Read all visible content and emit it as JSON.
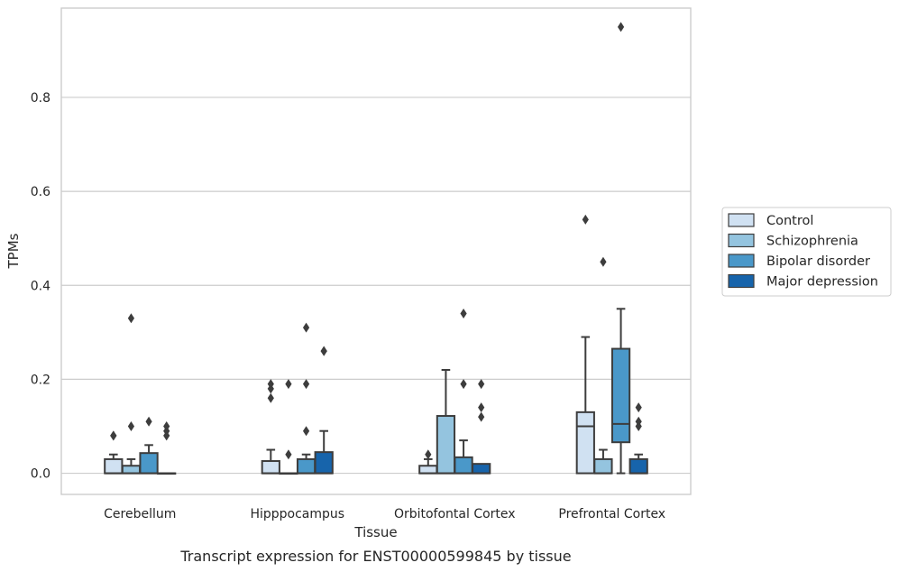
{
  "chart_data": {
    "type": "box",
    "title": "",
    "caption": "Transcript expression for ENST00000599845 by tissue",
    "xlabel": "Tissue",
    "ylabel": "TPMs",
    "ylim": [
      -0.045,
      0.99
    ],
    "yticks": [
      0.0,
      0.2,
      0.4,
      0.6,
      0.8
    ],
    "ytick_labels": [
      "0.0",
      "0.2",
      "0.4",
      "0.6",
      "0.8"
    ],
    "grid": "horizontal",
    "legend_position": "right",
    "categories": [
      "Cerebellum",
      "Hipppocampus",
      "Orbitofontal Cortex",
      "Prefrontal Cortex"
    ],
    "series": [
      {
        "name": "Control",
        "color": "#d0e1f2",
        "boxes": [
          {
            "q1": 0.0,
            "median": 0.0,
            "q3": 0.03,
            "whislo": 0.0,
            "whishi": 0.04,
            "fliers": [
              0.08,
              0.08
            ]
          },
          {
            "q1": 0.0,
            "median": 0.0,
            "q3": 0.026,
            "whislo": 0.0,
            "whishi": 0.05,
            "fliers": [
              0.16,
              0.18,
              0.19
            ]
          },
          {
            "q1": 0.0,
            "median": 0.0,
            "q3": 0.016,
            "whislo": 0.0,
            "whishi": 0.03,
            "fliers": [
              0.04
            ]
          },
          {
            "q1": 0.0,
            "median": 0.1,
            "q3": 0.13,
            "whislo": 0.0,
            "whishi": 0.29,
            "fliers": [
              0.54
            ]
          }
        ]
      },
      {
        "name": "Schizophrenia",
        "color": "#94c4df",
        "boxes": [
          {
            "q1": 0.0,
            "median": 0.0,
            "q3": 0.016,
            "whislo": 0.0,
            "whishi": 0.03,
            "fliers": [
              0.1,
              0.33
            ]
          },
          {
            "q1": 0.0,
            "median": 0.0,
            "q3": 0.0,
            "whislo": 0.0,
            "whishi": 0.0,
            "fliers": [
              0.04,
              0.19
            ]
          },
          {
            "q1": 0.0,
            "median": 0.0,
            "q3": 0.122,
            "whislo": 0.0,
            "whishi": 0.22,
            "fliers": []
          },
          {
            "q1": 0.0,
            "median": 0.0,
            "q3": 0.03,
            "whislo": 0.0,
            "whishi": 0.05,
            "fliers": [
              0.45
            ]
          }
        ]
      },
      {
        "name": "Bipolar disorder",
        "color": "#4a98c9",
        "boxes": [
          {
            "q1": 0.0,
            "median": 0.0,
            "q3": 0.043,
            "whislo": 0.0,
            "whishi": 0.06,
            "fliers": [
              0.11
            ]
          },
          {
            "q1": 0.0,
            "median": 0.0,
            "q3": 0.03,
            "whislo": 0.0,
            "whishi": 0.04,
            "fliers": [
              0.09,
              0.19,
              0.31
            ]
          },
          {
            "q1": 0.0,
            "median": 0.0,
            "q3": 0.034,
            "whislo": 0.0,
            "whishi": 0.07,
            "fliers": [
              0.19,
              0.34
            ]
          },
          {
            "q1": 0.066,
            "median": 0.105,
            "q3": 0.265,
            "whislo": 0.0,
            "whishi": 0.35,
            "fliers": [
              0.95
            ]
          }
        ]
      },
      {
        "name": "Major depression",
        "color": "#1764ab",
        "boxes": [
          {
            "q1": 0.0,
            "median": 0.0,
            "q3": 0.0,
            "whislo": 0.0,
            "whishi": 0.0,
            "fliers": [
              0.08,
              0.09,
              0.1
            ]
          },
          {
            "q1": 0.0,
            "median": 0.0,
            "q3": 0.045,
            "whislo": 0.0,
            "whishi": 0.09,
            "fliers": [
              0.26,
              0.26
            ]
          },
          {
            "q1": 0.0,
            "median": 0.0,
            "q3": 0.02,
            "whislo": 0.0,
            "whishi": 0.02,
            "fliers": [
              0.12,
              0.14,
              0.19
            ]
          },
          {
            "q1": 0.0,
            "median": 0.0,
            "q3": 0.03,
            "whislo": 0.0,
            "whishi": 0.04,
            "fliers": [
              0.1,
              0.11,
              0.14
            ]
          }
        ]
      }
    ],
    "colors": {
      "edge": "#3d3d3d",
      "grid": "#cccccc",
      "frame": "#cccccc",
      "text": "#262626"
    }
  }
}
